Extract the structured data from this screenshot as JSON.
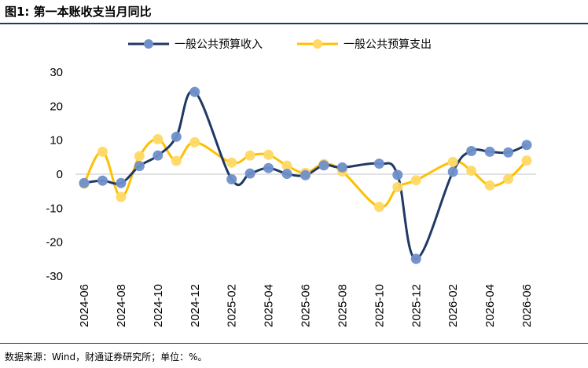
{
  "figure": {
    "title": "图1: 第一本账收支当月同比",
    "source": "数据来源：Wind，财通证券研究所；单位：%。"
  },
  "colors": {
    "revenue": "#203864",
    "revenue_marker": "#6f8fca",
    "expenditure": "#ffc000",
    "expenditure_marker": "#ffd966",
    "zero_line": "#d9d9d9",
    "rule": "#1f3864"
  },
  "chart_data": {
    "type": "line",
    "title": "",
    "xlabel": "",
    "ylabel": "",
    "ylim": [
      -30,
      30
    ],
    "yticks": [
      30,
      20,
      10,
      0,
      -10,
      -20,
      -30
    ],
    "grid": false,
    "legend_position": "top",
    "x": [
      "2024-06",
      "2024-07",
      "2024-08",
      "2024-09",
      "2024-10",
      "2024-11",
      "2024-12",
      "2025-01",
      "2025-02",
      "2025-03",
      "2025-04",
      "2025-05",
      "2025-06",
      "2025-07",
      "2025-08",
      "2025-09",
      "2025-10",
      "2025-11",
      "2025-12",
      "2026-01",
      "2026-02",
      "2026-03",
      "2026-04",
      "2026-05",
      "2026-06"
    ],
    "xtick_labels": [
      "2024-06",
      "2024-08",
      "2024-10",
      "2024-12",
      "2025-02",
      "2025-04",
      "2025-06",
      "2025-08",
      "2025-10",
      "2025-12",
      "2026-02",
      "2026-04",
      "2026-06"
    ],
    "series": [
      {
        "name": "一般公共预算收入",
        "values": [
          -2.6,
          -1.9,
          -2.6,
          2.4,
          5.5,
          11.0,
          24.2,
          null,
          -1.5,
          0.2,
          1.8,
          0.1,
          -0.3,
          2.6,
          2.0,
          null,
          3.1,
          -0.2,
          -24.9,
          null,
          0.7,
          6.8,
          6.6,
          6.4,
          8.6
        ]
      },
      {
        "name": "一般公共预算支出",
        "values": [
          -2.8,
          6.6,
          -6.7,
          5.3,
          10.3,
          3.9,
          9.4,
          null,
          3.4,
          5.5,
          5.7,
          2.5,
          0.4,
          3.0,
          0.8,
          null,
          -9.6,
          -3.8,
          -1.8,
          null,
          3.6,
          1.0,
          -3.3,
          -1.4,
          4.0
        ]
      }
    ]
  }
}
